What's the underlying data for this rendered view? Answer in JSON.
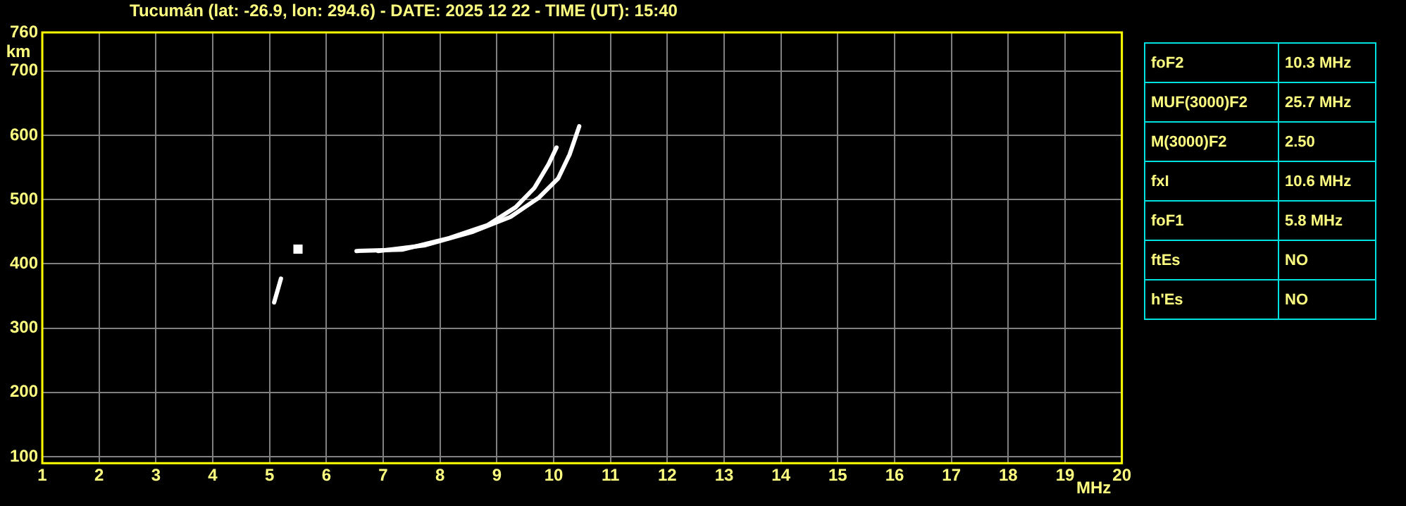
{
  "chart_data": {
    "type": "line",
    "title": "Tucumán (lat: -26.9, lon: 294.6) - DATE: 2025 12 22 - TIME (UT): 15:40",
    "xlabel": "MHz",
    "ylabel": "km",
    "xlim": [
      1,
      20
    ],
    "xticks": [
      1,
      2,
      3,
      4,
      5,
      6,
      7,
      8,
      9,
      10,
      11,
      12,
      13,
      14,
      15,
      16,
      17,
      18,
      19,
      20
    ],
    "ylim": [
      90,
      760
    ],
    "yticks": [
      100,
      200,
      300,
      400,
      500,
      600,
      700,
      760
    ],
    "grid": true,
    "legend": false,
    "marker": "none",
    "line_style": "solid",
    "series": [
      {
        "color": "#ffffff",
        "x": [
          6.53,
          7.33,
          8.16,
          8.83,
          9.33,
          9.66,
          9.91,
          10.05
        ],
        "values": [
          420,
          422,
          440,
          460,
          488,
          518,
          555,
          581
        ]
      },
      {
        "color": "#ffffff",
        "x": [
          6.91,
          7.74,
          8.58,
          9.24,
          9.74,
          10.08,
          10.28,
          10.45
        ],
        "values": [
          420,
          429,
          450,
          473,
          503,
          533,
          570,
          614
        ]
      },
      {
        "color": "#ffffff",
        "x": [
          5.08,
          5.2
        ],
        "values": [
          340,
          377
        ]
      },
      {
        "type": "scatter",
        "marker": "square",
        "color": "#ffffff",
        "x": [
          5.5
        ],
        "values": [
          423
        ]
      }
    ],
    "annotations": [
      "foF2",
      "10.3 MHz",
      "MUF(3000)F2",
      "25.7 MHz",
      "M(3000)F2",
      "2.50",
      "fxI",
      "10.6 MHz",
      "foF1",
      "5.8 MHz",
      "ftEs",
      "NO",
      "h'Es",
      "NO"
    ]
  }
}
